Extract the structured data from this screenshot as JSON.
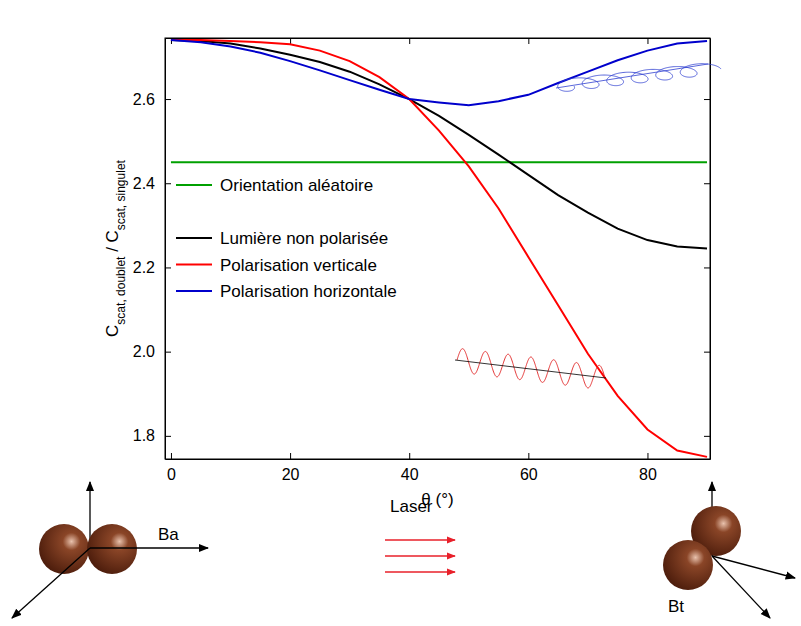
{
  "chart_data": {
    "type": "line",
    "x_label": "θ (°)",
    "y_label": [
      {
        "text": "C"
      },
      {
        "text": "scat, doublet",
        "sub": true
      },
      {
        "text": " / C"
      },
      {
        "text": "scat, singulet",
        "sub": true
      }
    ],
    "x": [
      0,
      5,
      10,
      15,
      20,
      25,
      30,
      35,
      40,
      45,
      50,
      55,
      60,
      65,
      70,
      75,
      80,
      85,
      90
    ],
    "series": [
      {
        "name": "Orientation aléatoire",
        "color": "#00a000",
        "values": [
          2.45,
          2.45,
          2.45,
          2.45,
          2.45,
          2.45,
          2.45,
          2.45,
          2.45,
          2.45,
          2.45,
          2.45,
          2.45,
          2.45,
          2.45,
          2.45,
          2.45,
          2.45,
          2.45
        ]
      },
      {
        "name": "Lumière non polarisée",
        "color": "#000000",
        "values": [
          2.74,
          2.738,
          2.732,
          2.72,
          2.705,
          2.688,
          2.665,
          2.635,
          2.6,
          2.56,
          2.515,
          2.468,
          2.42,
          2.372,
          2.33,
          2.292,
          2.265,
          2.25,
          2.245
        ]
      },
      {
        "name": "Polarisation verticale",
        "color": "#ff0000",
        "values": [
          2.74,
          2.74,
          2.738,
          2.735,
          2.73,
          2.715,
          2.69,
          2.652,
          2.6,
          2.525,
          2.44,
          2.34,
          2.225,
          2.11,
          1.995,
          1.895,
          1.815,
          1.765,
          1.75
        ]
      },
      {
        "name": "Polarisation horizontale",
        "color": "#0000cc",
        "values": [
          2.74,
          2.735,
          2.725,
          2.71,
          2.69,
          2.668,
          2.645,
          2.622,
          2.6,
          2.592,
          2.585,
          2.595,
          2.61,
          2.638,
          2.665,
          2.692,
          2.715,
          2.732,
          2.738
        ]
      }
    ],
    "xlim": [
      -1,
      90.5
    ],
    "ylim": [
      1.745,
      2.745
    ],
    "xticks": [
      0,
      20,
      40,
      60,
      80
    ],
    "yticks": [
      1.8,
      {
        "value": 2,
        "label": "2.0"
      },
      2.2,
      2.4,
      2.6
    ],
    "grid": false,
    "legend": "left"
  },
  "diagram": {
    "left_label": "Ba",
    "center_label": "Laser",
    "right_label": "Bt"
  }
}
